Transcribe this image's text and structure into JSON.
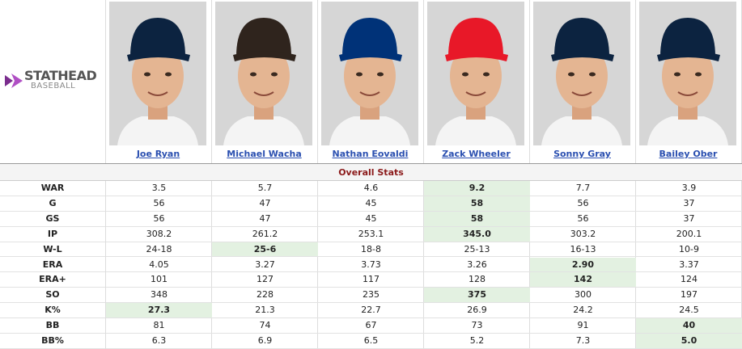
{
  "logo": {
    "brand": "STATHEAD",
    "sub": "BASEBALL"
  },
  "players": [
    {
      "name": "Joe Ryan",
      "cap_color": "#0c2340"
    },
    {
      "name": "Michael Wacha",
      "cap_color": "#2f241d"
    },
    {
      "name": "Nathan Eovaldi",
      "cap_color": "#003278"
    },
    {
      "name": "Zack Wheeler",
      "cap_color": "#e81828"
    },
    {
      "name": "Sonny Gray",
      "cap_color": "#0c2340"
    },
    {
      "name": "Bailey Ober",
      "cap_color": "#0c2340"
    }
  ],
  "section": "Overall Stats",
  "highlight_color": "#e3f1e1",
  "rows": [
    {
      "label": "WAR",
      "values": [
        "3.5",
        "5.7",
        "4.6",
        "9.2",
        "7.7",
        "3.9"
      ],
      "best": 3
    },
    {
      "label": "G",
      "values": [
        "56",
        "47",
        "45",
        "58",
        "56",
        "37"
      ],
      "best": 3
    },
    {
      "label": "GS",
      "values": [
        "56",
        "47",
        "45",
        "58",
        "56",
        "37"
      ],
      "best": 3
    },
    {
      "label": "IP",
      "values": [
        "308.2",
        "261.2",
        "253.1",
        "345.0",
        "303.2",
        "200.1"
      ],
      "best": 3
    },
    {
      "label": "W-L",
      "values": [
        "24-18",
        "25-6",
        "18-8",
        "25-13",
        "16-13",
        "10-9"
      ],
      "best": 1
    },
    {
      "label": "ERA",
      "values": [
        "4.05",
        "3.27",
        "3.73",
        "3.26",
        "2.90",
        "3.37"
      ],
      "best": 4
    },
    {
      "label": "ERA+",
      "values": [
        "101",
        "127",
        "117",
        "128",
        "142",
        "124"
      ],
      "best": 4
    },
    {
      "label": "SO",
      "values": [
        "348",
        "228",
        "235",
        "375",
        "300",
        "197"
      ],
      "best": 3
    },
    {
      "label": "K%",
      "values": [
        "27.3",
        "21.3",
        "22.7",
        "26.9",
        "24.2",
        "24.5"
      ],
      "best": 0
    },
    {
      "label": "BB",
      "values": [
        "81",
        "74",
        "67",
        "73",
        "91",
        "40"
      ],
      "best": 5
    },
    {
      "label": "BB%",
      "values": [
        "6.3",
        "6.9",
        "6.5",
        "5.2",
        "7.3",
        "5.0"
      ],
      "best": 5
    }
  ]
}
